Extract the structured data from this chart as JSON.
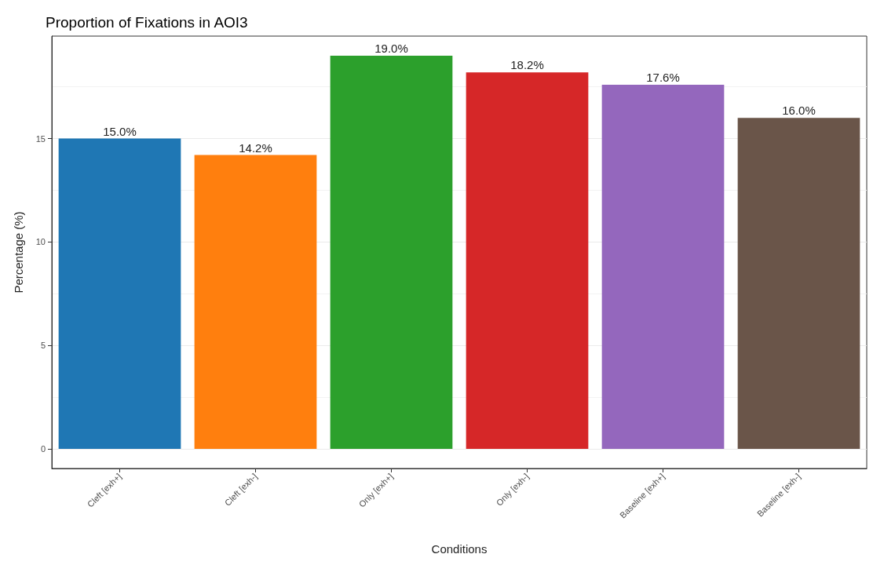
{
  "chart_data": {
    "type": "bar",
    "title": "Proportion of Fixations in AOI3",
    "xlabel": "Conditions",
    "ylabel": "Percentage (%)",
    "categories": [
      "Cleft [exh+]",
      "Cleft [exh-]",
      "Only [exh+]",
      "Only [exh-]",
      "Baseline [exh+]",
      "Baseline [exh-]"
    ],
    "values": [
      15.0,
      14.2,
      19.0,
      18.2,
      17.6,
      16.0
    ],
    "colors": [
      "#1f77b4",
      "#ff7f0e",
      "#2ca02c",
      "#d62728",
      "#9467bd",
      "#6a5549"
    ],
    "value_labels": [
      "15.0%",
      "14.2%",
      "19.0%",
      "18.2%",
      "17.6%",
      "16.0%"
    ],
    "ylim": [
      -0.95,
      19.95
    ],
    "yticks": [
      0,
      5,
      10,
      15
    ],
    "grid": true
  }
}
